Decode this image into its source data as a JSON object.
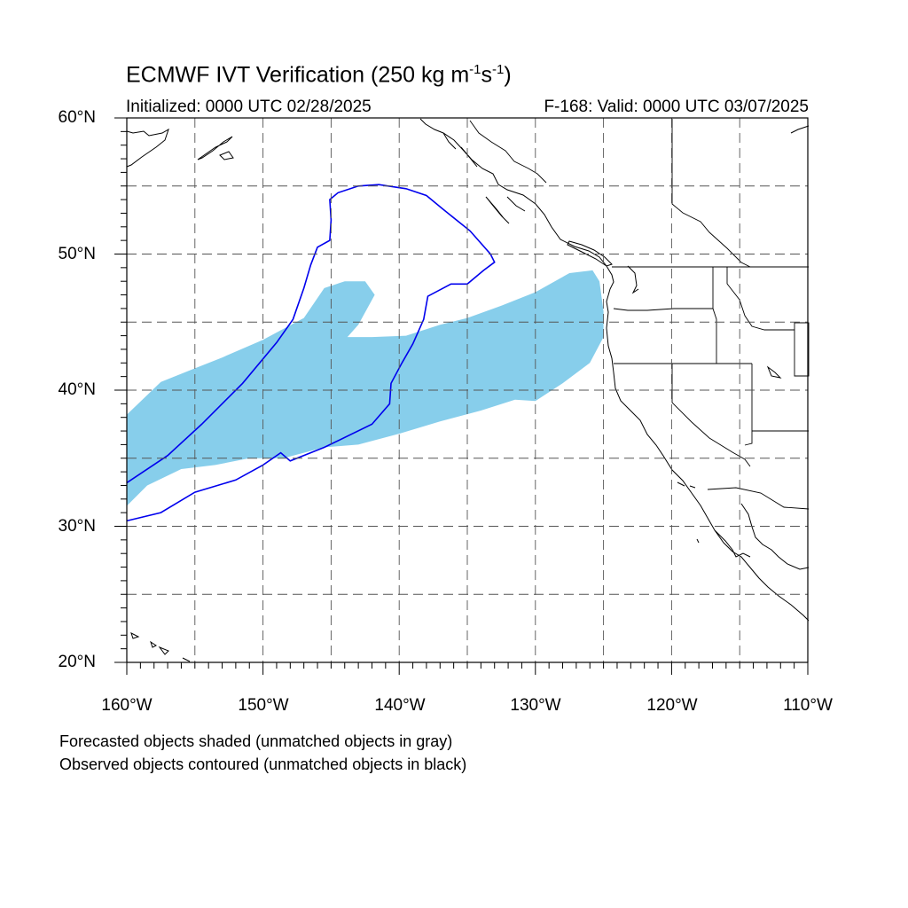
{
  "title": {
    "main": "ECMWF IVT Verification (250 kg m",
    "sup1": "-1",
    "mid": "s",
    "sup2": "-1",
    "end": ")"
  },
  "subtitle_left": "Initialized: 0000 UTC 02/28/2025",
  "subtitle_right": "F-168: Valid: 0000 UTC 03/07/2025",
  "lat_labels": [
    "60°N",
    "50°N",
    "40°N",
    "30°N",
    "20°N"
  ],
  "lon_labels": [
    "160°W",
    "150°W",
    "140°W",
    "130°W",
    "120°W",
    "110°W"
  ],
  "notes": [
    "Forecasted objects shaded (unmatched objects in gray)",
    "Observed objects contoured (unmatched objects in black)"
  ],
  "map": {
    "extent": {
      "lon": [
        -160,
        -110
      ],
      "lat": [
        20,
        60
      ]
    },
    "gridlines_dashed": true,
    "colors": {
      "forecast_fill": "#87ceeb",
      "observed_contour": "#0000ee",
      "coastline": "#000000",
      "grid": "#555555"
    },
    "forecast_object_lonlat": [
      [
        -160.0,
        31.5
      ],
      [
        -158.5,
        33.0
      ],
      [
        -156.0,
        34.2
      ],
      [
        -153.5,
        34.5
      ],
      [
        -151.0,
        35.0
      ],
      [
        -148.5,
        35.0
      ],
      [
        -145.5,
        35.8
      ],
      [
        -143.0,
        36.0
      ],
      [
        -140.0,
        36.8
      ],
      [
        -137.0,
        37.7
      ],
      [
        -134.0,
        38.5
      ],
      [
        -131.5,
        39.3
      ],
      [
        -130.0,
        39.2
      ],
      [
        -128.0,
        40.5
      ],
      [
        -126.0,
        42.0
      ],
      [
        -125.0,
        43.9
      ],
      [
        -125.0,
        45.8
      ],
      [
        -125.3,
        48.0
      ],
      [
        -125.8,
        48.8
      ],
      [
        -127.5,
        48.6
      ],
      [
        -130.0,
        47.2
      ],
      [
        -132.5,
        46.2
      ],
      [
        -135.0,
        45.3
      ],
      [
        -137.0,
        44.8
      ],
      [
        -139.5,
        44.0
      ],
      [
        -142.0,
        43.9
      ],
      [
        -143.8,
        43.9
      ],
      [
        -143.0,
        44.8
      ],
      [
        -141.8,
        47.0
      ],
      [
        -142.5,
        48.0
      ],
      [
        -144.0,
        48.0
      ],
      [
        -145.5,
        47.5
      ],
      [
        -147.0,
        45.3
      ],
      [
        -148.5,
        44.5
      ],
      [
        -150.0,
        43.7
      ],
      [
        -153.0,
        42.4
      ],
      [
        -155.0,
        41.6
      ],
      [
        -157.5,
        40.6
      ],
      [
        -160.0,
        38.2
      ]
    ],
    "observed_object_lonlat": [
      [
        -160.0,
        30.4
      ],
      [
        -157.5,
        31.0
      ],
      [
        -155.0,
        32.5
      ],
      [
        -152.0,
        33.4
      ],
      [
        -150.0,
        34.5
      ],
      [
        -148.7,
        35.4
      ],
      [
        -148.0,
        34.8
      ],
      [
        -145.5,
        35.8
      ],
      [
        -142.0,
        37.5
      ],
      [
        -140.7,
        39.0
      ],
      [
        -140.6,
        40.5
      ],
      [
        -139.8,
        42.0
      ],
      [
        -139.0,
        43.4
      ],
      [
        -138.2,
        45.2
      ],
      [
        -137.9,
        46.9
      ],
      [
        -136.2,
        47.8
      ],
      [
        -135.0,
        47.8
      ],
      [
        -133.8,
        48.8
      ],
      [
        -133.0,
        49.4
      ],
      [
        -133.3,
        50.0
      ],
      [
        -134.8,
        51.7
      ],
      [
        -136.8,
        53.3
      ],
      [
        -138.0,
        54.3
      ],
      [
        -139.5,
        54.8
      ],
      [
        -141.5,
        55.1
      ],
      [
        -143.0,
        55.0
      ],
      [
        -144.5,
        54.5
      ],
      [
        -145.1,
        54.0
      ],
      [
        -145.0,
        52.5
      ],
      [
        -145.1,
        51.0
      ],
      [
        -146.0,
        50.5
      ],
      [
        -146.5,
        49.2
      ],
      [
        -147.0,
        47.5
      ],
      [
        -147.8,
        45.2
      ],
      [
        -149.0,
        43.5
      ],
      [
        -151.5,
        40.5
      ],
      [
        -154.5,
        37.5
      ],
      [
        -157.0,
        35.2
      ],
      [
        -160.0,
        33.2
      ]
    ]
  }
}
